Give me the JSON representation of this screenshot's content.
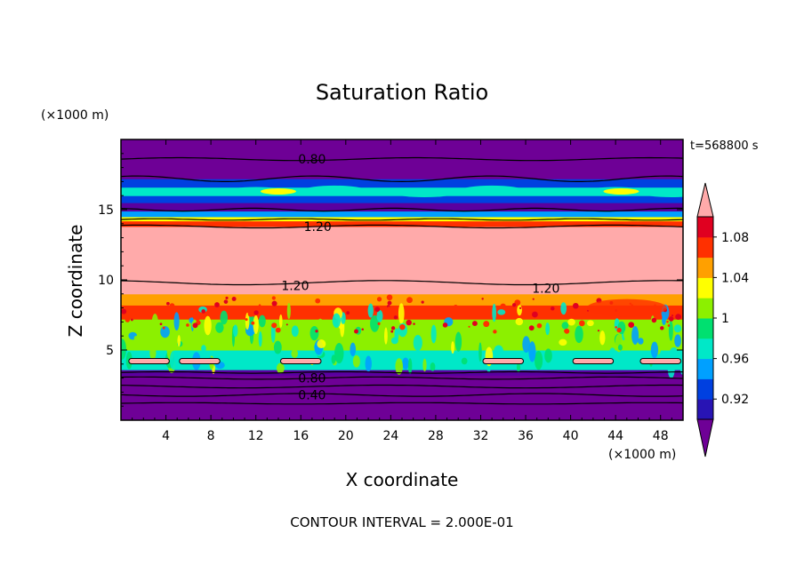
{
  "chart_data": {
    "type": "heatmap",
    "title": "Saturation Ratio",
    "xlabel": "X coordinate",
    "ylabel": "Z coordinate",
    "x_unit": "(×1000 m)",
    "z_unit": "(×1000 m)",
    "time_label": "t=568800 s",
    "footer": "CONTOUR INTERVAL = 2.000E-01",
    "xlim": [
      0,
      50
    ],
    "ylim": [
      0,
      20
    ],
    "xticks": [
      4,
      8,
      12,
      16,
      20,
      24,
      28,
      32,
      36,
      40,
      44,
      48
    ],
    "yticks": [
      5,
      10,
      15
    ],
    "contour_interval": 0.2,
    "contour_labels": [
      {
        "text": "0.80",
        "x": 17.0,
        "z": 18.6
      },
      {
        "text": "1.20",
        "x": 17.5,
        "z": 13.8
      },
      {
        "text": "1.20",
        "x": 15.5,
        "z": 9.6
      },
      {
        "text": "1.20",
        "x": 37.8,
        "z": 9.4
      },
      {
        "text": "0.80",
        "x": 17.0,
        "z": 3.0
      },
      {
        "text": "0.40",
        "x": 17.0,
        "z": 1.8
      }
    ],
    "colorbar": {
      "levels": [
        0.9,
        0.92,
        0.94,
        0.96,
        0.98,
        1.0,
        1.02,
        1.04,
        1.06,
        1.08,
        1.1
      ],
      "tick_labels": [
        "0.92",
        "0.96",
        "1",
        "1.04",
        "1.08"
      ],
      "colors": [
        "#5a00a0",
        "#2814b4",
        "#0040e0",
        "#00a0ff",
        "#00e8c8",
        "#00e070",
        "#8cf000",
        "#ffff00",
        "#ffa000",
        "#ff3000",
        "#e00020",
        "#ffaaaa"
      ],
      "under_color": "#6e0096",
      "over_color": "#ffaaaa"
    },
    "bands": [
      {
        "z0": 0.0,
        "z1": 3.2,
        "color": "#6e0096"
      },
      {
        "z0": 3.2,
        "z1": 3.6,
        "color": "#5a00a0"
      },
      {
        "z0": 3.6,
        "z1": 5.0,
        "color": "#00e8c8"
      },
      {
        "z0": 5.0,
        "z1": 7.2,
        "color": "#8cf000"
      },
      {
        "z0": 7.2,
        "z1": 8.2,
        "color": "#ff3000"
      },
      {
        "z0": 8.2,
        "z1": 9.0,
        "color": "#ffa000"
      },
      {
        "z0": 9.0,
        "z1": 13.8,
        "color": "#ffaaaa"
      },
      {
        "z0": 13.8,
        "z1": 14.2,
        "color": "#ff3000"
      },
      {
        "z0": 14.2,
        "z1": 14.5,
        "color": "#ffff00"
      },
      {
        "z0": 14.5,
        "z1": 14.9,
        "color": "#00a0ff"
      },
      {
        "z0": 14.9,
        "z1": 15.5,
        "color": "#5a00a0"
      },
      {
        "z0": 15.5,
        "z1": 16.0,
        "color": "#0040e0"
      },
      {
        "z0": 16.0,
        "z1": 16.6,
        "color": "#00e8c8"
      },
      {
        "z0": 16.6,
        "z1": 17.2,
        "color": "#0040e0"
      },
      {
        "z0": 17.2,
        "z1": 20.0,
        "color": "#6e0096"
      }
    ]
  }
}
